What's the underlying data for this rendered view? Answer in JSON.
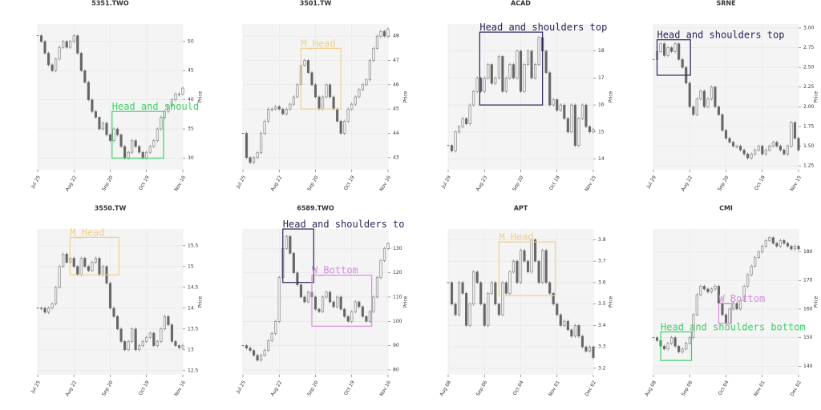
{
  "chart_data": [
    {
      "type": "candlestick",
      "title": "5351.TWO",
      "ylabel": "Price",
      "color": "#666666",
      "values": [
        51,
        50,
        48,
        46,
        45,
        47,
        49,
        50,
        49,
        50,
        51,
        48,
        45,
        43,
        40,
        38,
        37,
        35,
        36,
        34,
        33,
        35,
        34,
        32,
        30,
        31,
        33,
        32,
        31,
        30,
        31,
        32,
        33,
        35,
        37,
        38,
        39,
        40,
        41,
        41,
        42
      ],
      "xlim": [
        0,
        40
      ],
      "xticks": [
        {
          "value": 0,
          "label": "Jul 25"
        },
        {
          "value": 10,
          "label": "Aug 22"
        },
        {
          "value": 20,
          "label": "Sep 20"
        },
        {
          "value": 30,
          "label": "Oct 19"
        },
        {
          "value": 40,
          "label": "Nov 16"
        }
      ],
      "ylim": [
        28,
        53
      ],
      "yticks": [
        30,
        35,
        40,
        45,
        50
      ],
      "grid": true,
      "annotations": [
        {
          "label": "Head and should",
          "color": "#3ecf6a",
          "start": 20.5,
          "end": 34.7,
          "low": 30,
          "high": 38
        }
      ]
    },
    {
      "type": "candlestick",
      "title": "3501.TW",
      "ylabel": "Price",
      "color": "#666666",
      "values": [
        44,
        43,
        42.8,
        43,
        43.2,
        44,
        44.5,
        45,
        45,
        45.1,
        45,
        44.8,
        45,
        45.2,
        45.5,
        46,
        46.8,
        47,
        46.5,
        46,
        45.5,
        45,
        45.5,
        46,
        45.5,
        45,
        44.5,
        44,
        44.5,
        45,
        45.2,
        45.5,
        45.8,
        46,
        46.2,
        47,
        47.5,
        48,
        48.2,
        48,
        48.3
      ],
      "xlim": [
        0,
        40
      ],
      "xticks": [
        {
          "value": 0,
          "label": "Jul 25"
        },
        {
          "value": 10,
          "label": "Aug 22"
        },
        {
          "value": 20,
          "label": "Sep 20"
        },
        {
          "value": 30,
          "label": "Oct 19"
        },
        {
          "value": 40,
          "label": "Nov 16"
        }
      ],
      "ylim": [
        42.5,
        48.5
      ],
      "yticks": [
        43,
        44,
        45,
        46,
        47,
        48
      ],
      "grid": true,
      "annotations": [
        {
          "label": "M_Head",
          "color": "#f0d08a",
          "start": 16,
          "end": 27,
          "low": 45,
          "high": 47.5
        }
      ]
    },
    {
      "type": "candlestick",
      "title": "ACAD",
      "ylabel": "Price",
      "color": "#666666",
      "values": [
        14.5,
        14.3,
        15,
        15.2,
        15.5,
        15.3,
        16,
        16.5,
        17,
        16.5,
        17,
        17.5,
        16.8,
        17,
        17.8,
        16.5,
        17,
        17.5,
        17,
        18,
        16.5,
        17.5,
        18,
        17,
        17.5,
        18.5,
        18,
        17.2,
        16,
        16.2,
        15.8,
        16,
        15.5,
        15,
        16,
        14.5,
        15.5,
        16,
        15.2,
        15,
        15.1
      ],
      "xlim": [
        0,
        40
      ],
      "xticks": [
        {
          "value": 0,
          "label": "Jul 29"
        },
        {
          "value": 10,
          "label": "Aug 23"
        },
        {
          "value": 20,
          "label": "Sep 20"
        },
        {
          "value": 30,
          "label": "Oct 18"
        },
        {
          "value": 40,
          "label": "Nov 15"
        }
      ],
      "ylim": [
        13.6,
        19
      ],
      "yticks": [
        14,
        15,
        16,
        17,
        18
      ],
      "grid": true,
      "annotations": [
        {
          "label": "Head and shoulders top",
          "color": "#2a2358",
          "start": 8.7,
          "end": 26,
          "low": 16,
          "high": 18.7
        }
      ]
    },
    {
      "type": "candlestick",
      "title": "SRNE",
      "ylabel": "Price",
      "color": "#666666",
      "values": [
        2.6,
        2.7,
        2.8,
        2.65,
        2.75,
        2.7,
        2.8,
        2.6,
        2.5,
        2.3,
        2.0,
        1.9,
        2.1,
        2.2,
        2.0,
        2.1,
        2.25,
        2.0,
        1.9,
        1.7,
        1.6,
        1.55,
        1.5,
        1.5,
        1.45,
        1.4,
        1.35,
        1.4,
        1.45,
        1.5,
        1.4,
        1.45,
        1.5,
        1.55,
        1.5,
        1.45,
        1.4,
        1.5,
        1.8,
        1.6,
        1.45
      ],
      "xlim": [
        0,
        40
      ],
      "xticks": [
        {
          "value": 0,
          "label": "Jul 29"
        },
        {
          "value": 10,
          "label": "Aug 22"
        },
        {
          "value": 20,
          "label": "Sep 20"
        },
        {
          "value": 30,
          "label": "Oct 18"
        },
        {
          "value": 40,
          "label": "Nov 15"
        }
      ],
      "ylim": [
        1.2,
        3.05
      ],
      "yticks": [
        {
          "value": 1.25,
          "label": "1.25"
        },
        {
          "value": 1.5,
          "label": "1.50"
        },
        {
          "value": 1.75,
          "label": "1.75"
        },
        {
          "value": 2,
          "label": "2.00"
        },
        {
          "value": 2.25,
          "label": "2.25"
        },
        {
          "value": 2.5,
          "label": "2.50"
        },
        {
          "value": 2.75,
          "label": "2.75"
        },
        {
          "value": 3,
          "label": "3.00"
        }
      ],
      "grid": true,
      "annotations": [
        {
          "label": "Head and shoulders top",
          "color": "#2a2358",
          "start": 1,
          "end": 10.2,
          "low": 2.4,
          "high": 2.85
        }
      ]
    },
    {
      "type": "candlestick",
      "title": "3550.TW",
      "ylabel": "Price",
      "color": "#666666",
      "values": [
        14,
        14,
        13.9,
        14,
        14.1,
        14.5,
        15,
        15.3,
        15.1,
        15.2,
        15,
        14.8,
        15.2,
        15,
        14.9,
        15.1,
        15.2,
        14.8,
        15,
        14.6,
        14,
        13.8,
        13.5,
        13.2,
        13,
        13.2,
        13.5,
        13,
        13.1,
        13.2,
        13.3,
        13.4,
        13.1,
        13.2,
        13.5,
        13.8,
        13.6,
        13.2,
        13.1,
        13.05,
        13.1
      ],
      "xlim": [
        0,
        40
      ],
      "xticks": [
        {
          "value": 0,
          "label": "Jul 25"
        },
        {
          "value": 10,
          "label": "Aug 22"
        },
        {
          "value": 20,
          "label": "Sep 20"
        },
        {
          "value": 30,
          "label": "Oct 19"
        },
        {
          "value": 40,
          "label": "Nov 16"
        }
      ],
      "ylim": [
        12.4,
        15.9
      ],
      "yticks": [
        12.5,
        13,
        13.5,
        14,
        14.5,
        15,
        15.5
      ],
      "grid": true,
      "annotations": [
        {
          "label": "M_Head",
          "color": "#f0d08a",
          "start": 8.9,
          "end": 22.4,
          "low": 14.8,
          "high": 15.7
        }
      ]
    },
    {
      "type": "candlestick",
      "title": "6589.TWO",
      "ylabel": "Price",
      "color": "#666666",
      "values": [
        90,
        89,
        88,
        86,
        84,
        86,
        88,
        92,
        95,
        100,
        118,
        130,
        135,
        128,
        120,
        115,
        110,
        108,
        112,
        110,
        105,
        104,
        110,
        112,
        108,
        106,
        110,
        105,
        102,
        100,
        104,
        108,
        106,
        102,
        100,
        104,
        110,
        118,
        125,
        130,
        132
      ],
      "xlim": [
        0,
        40
      ],
      "xticks": [
        {
          "value": 0,
          "label": "Jul 25"
        },
        {
          "value": 10,
          "label": "Aug 22"
        },
        {
          "value": 20,
          "label": "Sep 20"
        },
        {
          "value": 30,
          "label": "Oct 19"
        },
        {
          "value": 40,
          "label": "Nov 16"
        }
      ],
      "ylim": [
        78,
        138
      ],
      "yticks": [
        80,
        90,
        100,
        110,
        120,
        130
      ],
      "grid": true,
      "annotations": [
        {
          "label": "Head and shoulders to",
          "color": "#2a2358",
          "start": 11,
          "end": 19.5,
          "low": 116,
          "high": 138
        },
        {
          "label": "W_Bottom",
          "color": "#d58ed9",
          "start": 19,
          "end": 35.5,
          "low": 98,
          "high": 119
        }
      ]
    },
    {
      "type": "candlestick",
      "title": "APT",
      "ylabel": "Price",
      "color": "#666666",
      "values": [
        3.6,
        3.5,
        3.45,
        3.6,
        3.55,
        3.4,
        3.5,
        3.65,
        3.6,
        3.5,
        3.4,
        3.55,
        3.6,
        3.5,
        3.45,
        3.6,
        3.55,
        3.65,
        3.7,
        3.6,
        3.75,
        3.7,
        3.65,
        3.8,
        3.7,
        3.6,
        3.75,
        3.6,
        3.55,
        3.5,
        3.45,
        3.4,
        3.42,
        3.38,
        3.35,
        3.4,
        3.35,
        3.3,
        3.28,
        3.3,
        3.25
      ],
      "xlim": [
        0,
        40
      ],
      "xticks": [
        {
          "value": 0,
          "label": "Aug 08"
        },
        {
          "value": 10,
          "label": "Sep 06"
        },
        {
          "value": 20,
          "label": "Oct 04"
        },
        {
          "value": 30,
          "label": "Nov 01"
        },
        {
          "value": 40,
          "label": "Dec 02"
        }
      ],
      "ylim": [
        3.17,
        3.85
      ],
      "yticks": [
        3.2,
        3.3,
        3.4,
        3.5,
        3.6,
        3.7,
        3.8
      ],
      "grid": true,
      "annotations": [
        {
          "label": "M_Head",
          "color": "#f0d08a",
          "start": 14,
          "end": 29.5,
          "low": 3.54,
          "high": 3.79
        }
      ]
    },
    {
      "type": "candlestick",
      "title": "CMI",
      "ylabel": "Price",
      "color": "#666666",
      "values": [
        150,
        149,
        147,
        146,
        148,
        150,
        147,
        145,
        146,
        148,
        150,
        158,
        165,
        168,
        167,
        166,
        167,
        168,
        162,
        158,
        155,
        160,
        162,
        160,
        163,
        168,
        172,
        175,
        178,
        180,
        182,
        184,
        185,
        183,
        182,
        184,
        183,
        182,
        181,
        182,
        181
      ],
      "xlim": [
        0,
        40
      ],
      "xticks": [
        {
          "value": 0,
          "label": "Aug 08"
        },
        {
          "value": 10,
          "label": "Sep 06"
        },
        {
          "value": 20,
          "label": "Oct 04"
        },
        {
          "value": 30,
          "label": "Nov 01"
        },
        {
          "value": 40,
          "label": "Dec 02"
        }
      ],
      "ylim": [
        137,
        188
      ],
      "yticks": [
        140,
        150,
        160,
        170,
        180
      ],
      "grid": true,
      "annotations": [
        {
          "label": "Head and shoulders bottom",
          "color": "#3ecf6a",
          "start": 2,
          "end": 10.5,
          "low": 142,
          "high": 152
        },
        {
          "label": "W_Bottom",
          "color": "#d58ed9",
          "start": 18,
          "end": 21.5,
          "low": 155,
          "high": 162
        }
      ]
    }
  ]
}
